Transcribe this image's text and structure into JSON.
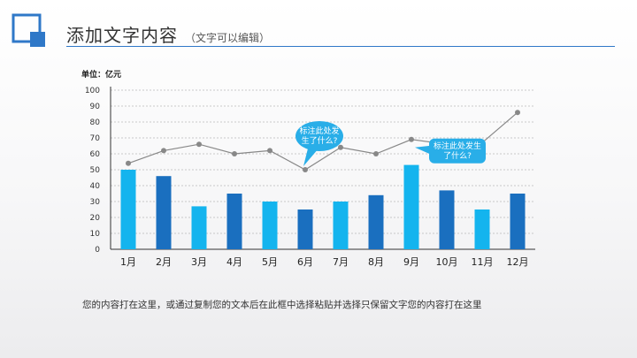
{
  "header": {
    "title": "添加文字内容",
    "subtitle": "（文字可以编辑）"
  },
  "unit_label": "单位：亿元",
  "note": "您的内容打在这里，或通过复制您的文本后在此框中选择粘贴并选择只保留文字您的内容打在这里",
  "colors": {
    "accent": "#2f78c8",
    "bar_light": "#14b4ee",
    "bar_dark": "#1a6fbf",
    "line": "#888888",
    "callout": "#29aee8"
  },
  "chart_data": {
    "type": "bar",
    "categories": [
      "1月",
      "2月",
      "3月",
      "4月",
      "5月",
      "6月",
      "7月",
      "8月",
      "9月",
      "10月",
      "11月",
      "12月"
    ],
    "series": [
      {
        "type": "bar",
        "values": [
          50,
          46,
          27,
          35,
          30,
          25,
          30,
          34,
          53,
          37,
          25,
          35
        ]
      },
      {
        "type": "line",
        "values": [
          54,
          62,
          66,
          60,
          62,
          50,
          64,
          60,
          69,
          66,
          67,
          86
        ]
      }
    ],
    "ylim": [
      0,
      100
    ],
    "yticks": [
      0,
      10,
      20,
      30,
      40,
      50,
      60,
      70,
      80,
      90,
      100
    ],
    "grid": true,
    "annotations": [
      {
        "lines": [
          "标注此处发",
          "生了什么?"
        ],
        "category": "6月"
      },
      {
        "lines": [
          "标注此处发生",
          "了什么?"
        ],
        "category": "9月"
      }
    ]
  }
}
